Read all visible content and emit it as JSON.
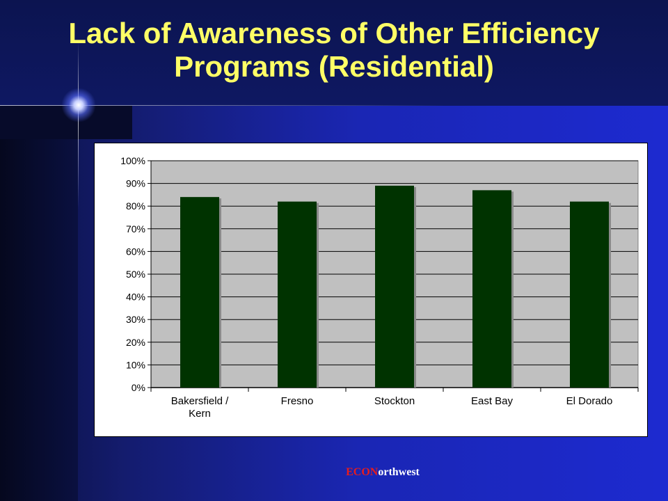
{
  "slide": {
    "title": "Lack of Awareness of Other Efficiency Programs (Residential)",
    "footer_brand_a": "ECON",
    "footer_brand_b": "orthwest"
  },
  "colors": {
    "title": "#ffff66",
    "bar": "#003300",
    "plot_bg": "#c0c0c0",
    "footer_red": "#e81c1c"
  },
  "chart_data": {
    "type": "bar",
    "categories": [
      "Bakersfield /\nKern",
      "Fresno",
      "Stockton",
      "East Bay",
      "El Dorado"
    ],
    "values": [
      84,
      82,
      89,
      87,
      82
    ],
    "ylim": [
      0,
      100
    ],
    "yticks": [
      "0%",
      "10%",
      "20%",
      "30%",
      "40%",
      "50%",
      "60%",
      "70%",
      "80%",
      "90%",
      "100%"
    ],
    "title": "",
    "xlabel": "",
    "ylabel": "",
    "grid": true,
    "legend": false
  }
}
